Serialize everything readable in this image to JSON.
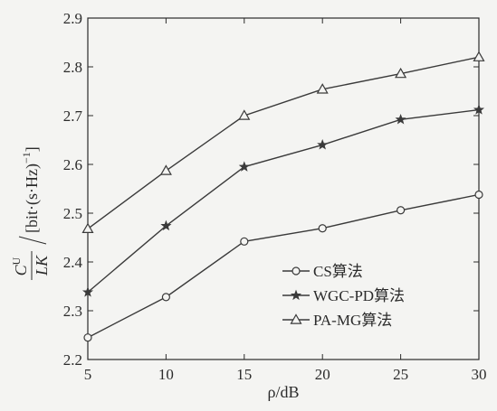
{
  "chart_data": {
    "type": "line",
    "x": [
      5,
      10,
      15,
      20,
      25,
      30
    ],
    "xlim": [
      5,
      30
    ],
    "ylim": [
      2.2,
      2.9
    ],
    "xticks": [
      "5",
      "10",
      "15",
      "20",
      "25",
      "30"
    ],
    "yticks": [
      "2.2",
      "2.3",
      "2.4",
      "2.5",
      "2.6",
      "2.7",
      "2.8",
      "2.9"
    ],
    "xlabel": "ρ/dB",
    "ylabel": {
      "numerator": "C",
      "superscript": "U",
      "denominator": "LK",
      "unit": "[bit·(s·Hz)",
      "unit_exponent": "−1",
      "unit_close": "]"
    },
    "grid": false,
    "legend_position": "lower-right",
    "series": [
      {
        "name": "CS算法",
        "marker": "circle",
        "values": [
          2.245,
          2.328,
          2.442,
          2.469,
          2.506,
          2.538
        ]
      },
      {
        "name": "WGC-PD算法",
        "marker": "star",
        "values": [
          2.338,
          2.474,
          2.595,
          2.64,
          2.692,
          2.712
        ]
      },
      {
        "name": "PA-MG算法",
        "marker": "triangle",
        "values": [
          2.468,
          2.587,
          2.7,
          2.754,
          2.786,
          2.82
        ]
      }
    ],
    "colors": {
      "line": "#3a3a3a",
      "axis": "#2b2b2b",
      "background": "#f4f4f2"
    }
  }
}
